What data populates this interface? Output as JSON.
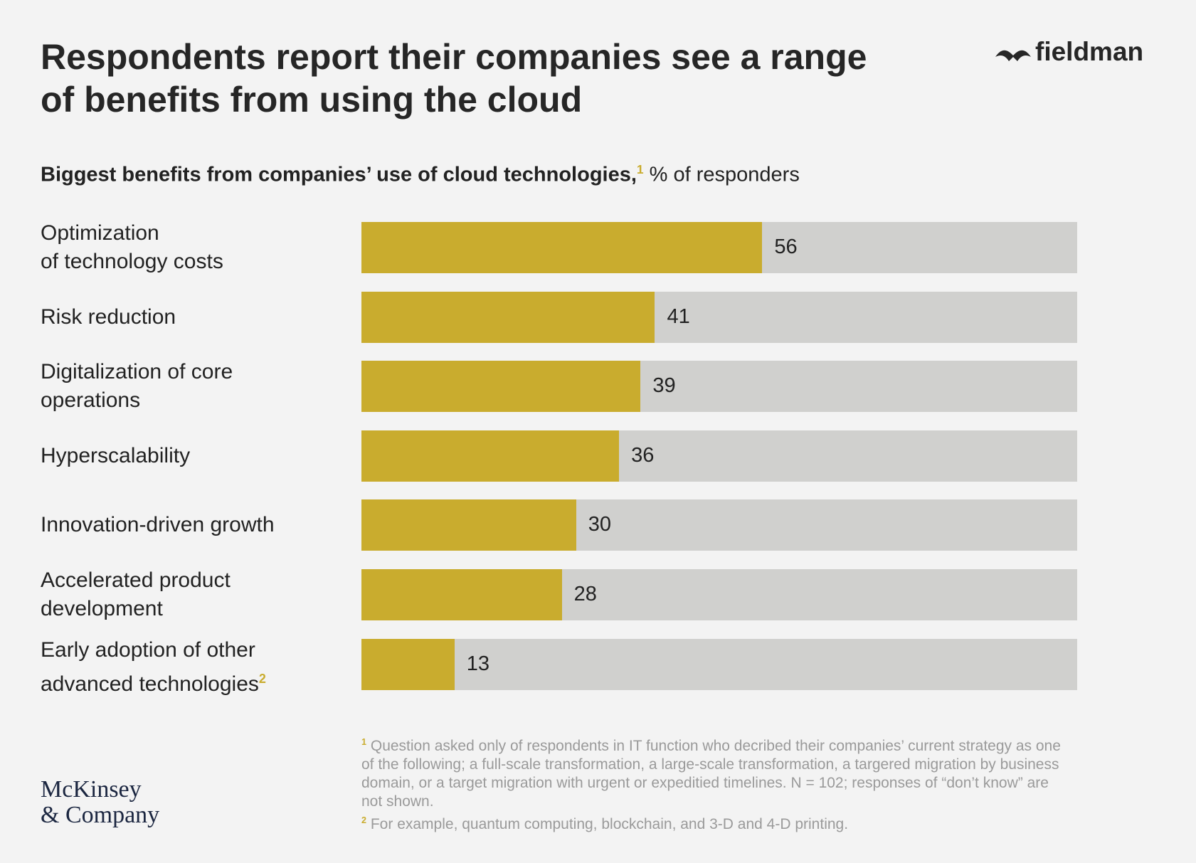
{
  "chart_data": {
    "type": "bar",
    "title": "Respondents report their companies see a range\nof benefits from using the cloud",
    "subtitle_bold": "Biggest benefits from companies’ use of cloud technologies,",
    "subtitle_rest": "% of responders",
    "categories": [
      "Optimization\nof technology costs",
      "Risk reduction",
      "Digitalization of core\noperations",
      "Hyperscalability",
      "Innovation-driven growth",
      "Accelerated product\ndevelopment",
      "Early adoption of other\nadvanced technologies"
    ],
    "values": [
      56,
      41,
      39,
      36,
      30,
      28,
      13
    ],
    "color": "#c9ac2e",
    "track_color": "#d0d0ce",
    "xlim": [
      0,
      100
    ],
    "footnotes": [
      {
        "mark": "1",
        "text": "Question asked only of respondents in IT function who decribed their companies’ current strategy as one of the following; a full-scale transformation, a large-scale transformation, a targered migration by business domain, or a target migration with urgent or expeditied timelines. N = 102; responses of “don’t know” are not shown."
      },
      {
        "mark": "2",
        "text": "For example, quantum computing, blockchain, and 3-D and 4-D printing."
      }
    ],
    "brand": "fieldman",
    "source_logo": "McKinsey\n& Company"
  }
}
